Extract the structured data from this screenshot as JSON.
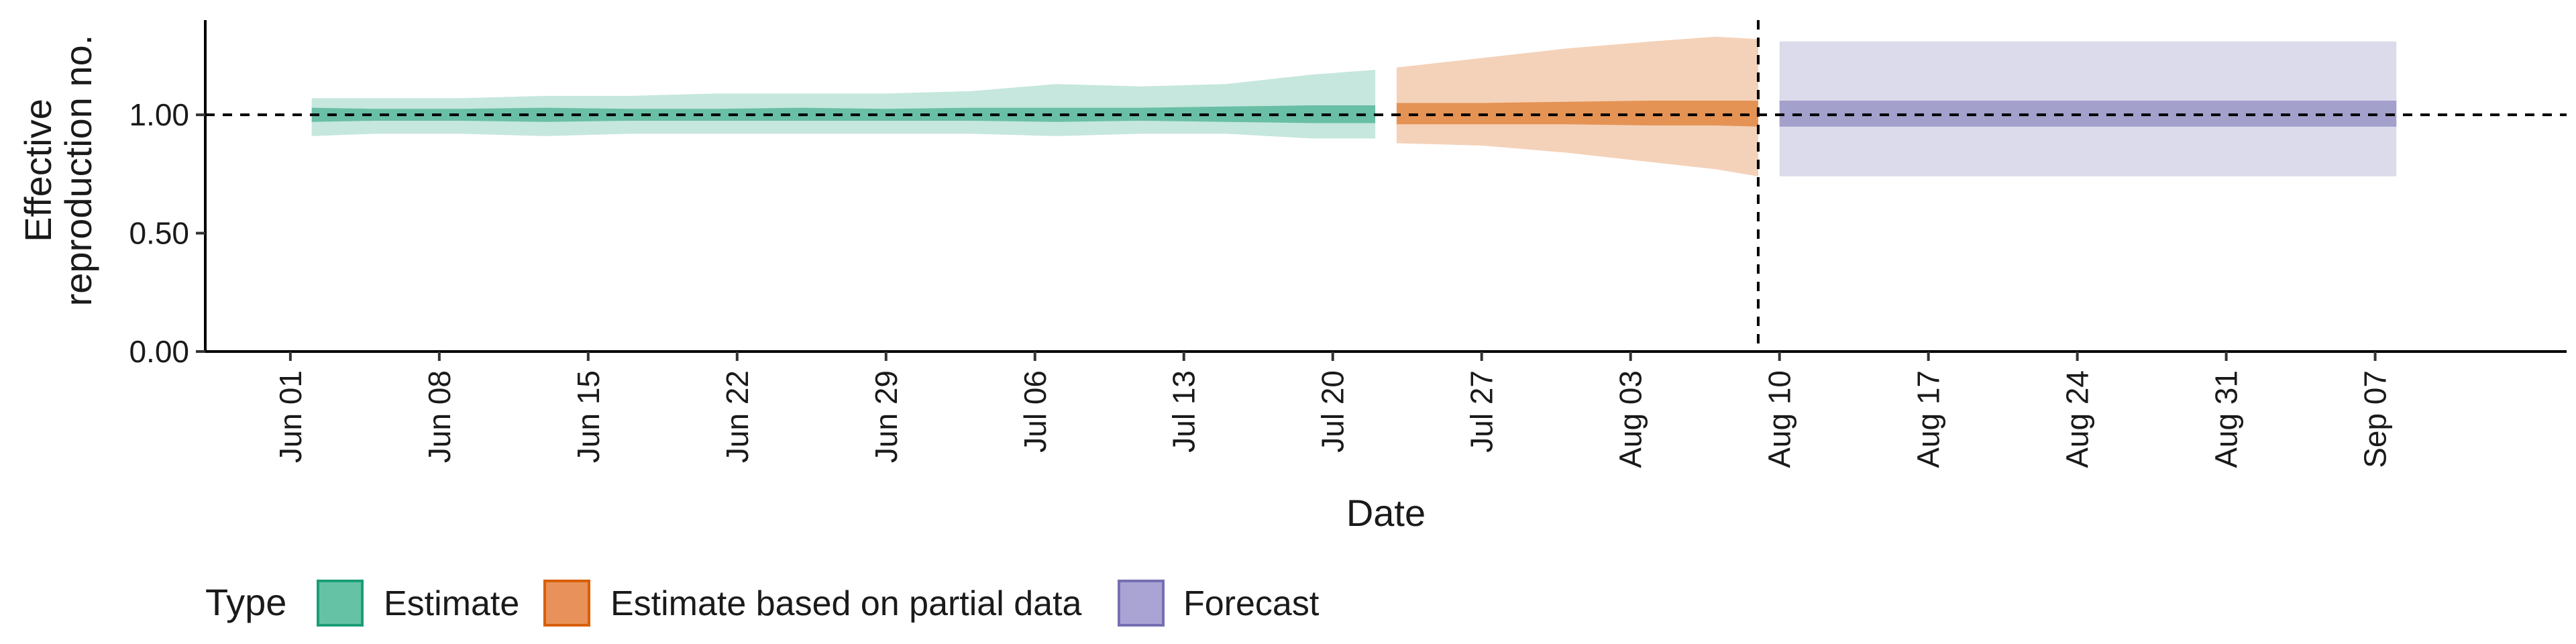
{
  "chart_data": {
    "type": "area",
    "ylabel_lines": [
      "Effective",
      "reproduction no."
    ],
    "xlabel": "Date",
    "ylim": [
      0,
      1.4
    ],
    "xlim": [
      "2020-05-28",
      "2020-09-16"
    ],
    "y_ticks": [
      {
        "value": 0.0,
        "label": "0.00"
      },
      {
        "value": 0.5,
        "label": "0.50"
      },
      {
        "value": 1.0,
        "label": "1.00"
      }
    ],
    "x_ticks": [
      {
        "date": "2020-06-01",
        "label": "Jun 01"
      },
      {
        "date": "2020-06-08",
        "label": "Jun 08"
      },
      {
        "date": "2020-06-15",
        "label": "Jun 15"
      },
      {
        "date": "2020-06-22",
        "label": "Jun 22"
      },
      {
        "date": "2020-06-29",
        "label": "Jun 29"
      },
      {
        "date": "2020-07-06",
        "label": "Jul 06"
      },
      {
        "date": "2020-07-13",
        "label": "Jul 13"
      },
      {
        "date": "2020-07-20",
        "label": "Jul 20"
      },
      {
        "date": "2020-07-27",
        "label": "Jul 27"
      },
      {
        "date": "2020-08-03",
        "label": "Aug 03"
      },
      {
        "date": "2020-08-10",
        "label": "Aug 10"
      },
      {
        "date": "2020-08-17",
        "label": "Aug 17"
      },
      {
        "date": "2020-08-24",
        "label": "Aug 24"
      },
      {
        "date": "2020-08-31",
        "label": "Aug 31"
      },
      {
        "date": "2020-09-07",
        "label": "Sep 07"
      }
    ],
    "reference_hline": 1.0,
    "reference_vline": "2020-08-09",
    "legend": {
      "title": "Type",
      "placement": "bottom-left",
      "entries": [
        {
          "name": "Estimate",
          "fill": "#66c2a5",
          "border": "#1b9e77"
        },
        {
          "name": "Estimate based on partial data",
          "fill": "#e8915a",
          "border": "#d95f02"
        },
        {
          "name": "Forecast",
          "fill": "#a9a4d3",
          "border": "#7570b3"
        }
      ]
    },
    "series": [
      {
        "name": "Estimate",
        "outer_color": "#1b9e77",
        "inner_color": "#1b9e77",
        "outer_opacity": 0.25,
        "inner_opacity": 0.55,
        "points": [
          {
            "x": "2020-06-02",
            "outer": [
              0.91,
              1.07
            ],
            "inner": [
              0.97,
              1.03
            ]
          },
          {
            "x": "2020-06-05",
            "outer": [
              0.92,
              1.07
            ],
            "inner": [
              0.975,
              1.025
            ]
          },
          {
            "x": "2020-06-09",
            "outer": [
              0.92,
              1.07
            ],
            "inner": [
              0.975,
              1.025
            ]
          },
          {
            "x": "2020-06-13",
            "outer": [
              0.91,
              1.08
            ],
            "inner": [
              0.97,
              1.03
            ]
          },
          {
            "x": "2020-06-17",
            "outer": [
              0.92,
              1.08
            ],
            "inner": [
              0.975,
              1.025
            ]
          },
          {
            "x": "2020-06-21",
            "outer": [
              0.92,
              1.09
            ],
            "inner": [
              0.975,
              1.025
            ]
          },
          {
            "x": "2020-06-25",
            "outer": [
              0.92,
              1.09
            ],
            "inner": [
              0.975,
              1.03
            ]
          },
          {
            "x": "2020-06-29",
            "outer": [
              0.92,
              1.09
            ],
            "inner": [
              0.975,
              1.025
            ]
          },
          {
            "x": "2020-07-03",
            "outer": [
              0.92,
              1.1
            ],
            "inner": [
              0.975,
              1.03
            ]
          },
          {
            "x": "2020-07-07",
            "outer": [
              0.91,
              1.13
            ],
            "inner": [
              0.97,
              1.03
            ]
          },
          {
            "x": "2020-07-11",
            "outer": [
              0.92,
              1.12
            ],
            "inner": [
              0.975,
              1.03
            ]
          },
          {
            "x": "2020-07-15",
            "outer": [
              0.92,
              1.13
            ],
            "inner": [
              0.97,
              1.035
            ]
          },
          {
            "x": "2020-07-19",
            "outer": [
              0.9,
              1.17
            ],
            "inner": [
              0.965,
              1.04
            ]
          },
          {
            "x": "2020-07-22",
            "outer": [
              0.9,
              1.19
            ],
            "inner": [
              0.965,
              1.04
            ]
          }
        ]
      },
      {
        "name": "Estimate based on partial data",
        "outer_color": "#d95f02",
        "inner_color": "#d95f02",
        "outer_opacity": 0.28,
        "inner_opacity": 0.55,
        "points": [
          {
            "x": "2020-07-23",
            "outer": [
              0.88,
              1.2
            ],
            "inner": [
              0.96,
              1.05
            ]
          },
          {
            "x": "2020-07-27",
            "outer": [
              0.87,
              1.24
            ],
            "inner": [
              0.96,
              1.05
            ]
          },
          {
            "x": "2020-07-31",
            "outer": [
              0.84,
              1.28
            ],
            "inner": [
              0.96,
              1.055
            ]
          },
          {
            "x": "2020-08-04",
            "outer": [
              0.8,
              1.31
            ],
            "inner": [
              0.955,
              1.06
            ]
          },
          {
            "x": "2020-08-07",
            "outer": [
              0.77,
              1.33
            ],
            "inner": [
              0.955,
              1.06
            ]
          },
          {
            "x": "2020-08-09",
            "outer": [
              0.74,
              1.32
            ],
            "inner": [
              0.95,
              1.06
            ]
          }
        ]
      },
      {
        "name": "Forecast",
        "outer_color": "#7570b3",
        "inner_color": "#7570b3",
        "outer_opacity": 0.25,
        "inner_opacity": 0.55,
        "points": [
          {
            "x": "2020-08-10",
            "outer": [
              0.74,
              1.31
            ],
            "inner": [
              0.95,
              1.06
            ]
          },
          {
            "x": "2020-09-08",
            "outer": [
              0.74,
              1.31
            ],
            "inner": [
              0.95,
              1.06
            ]
          }
        ]
      }
    ]
  }
}
